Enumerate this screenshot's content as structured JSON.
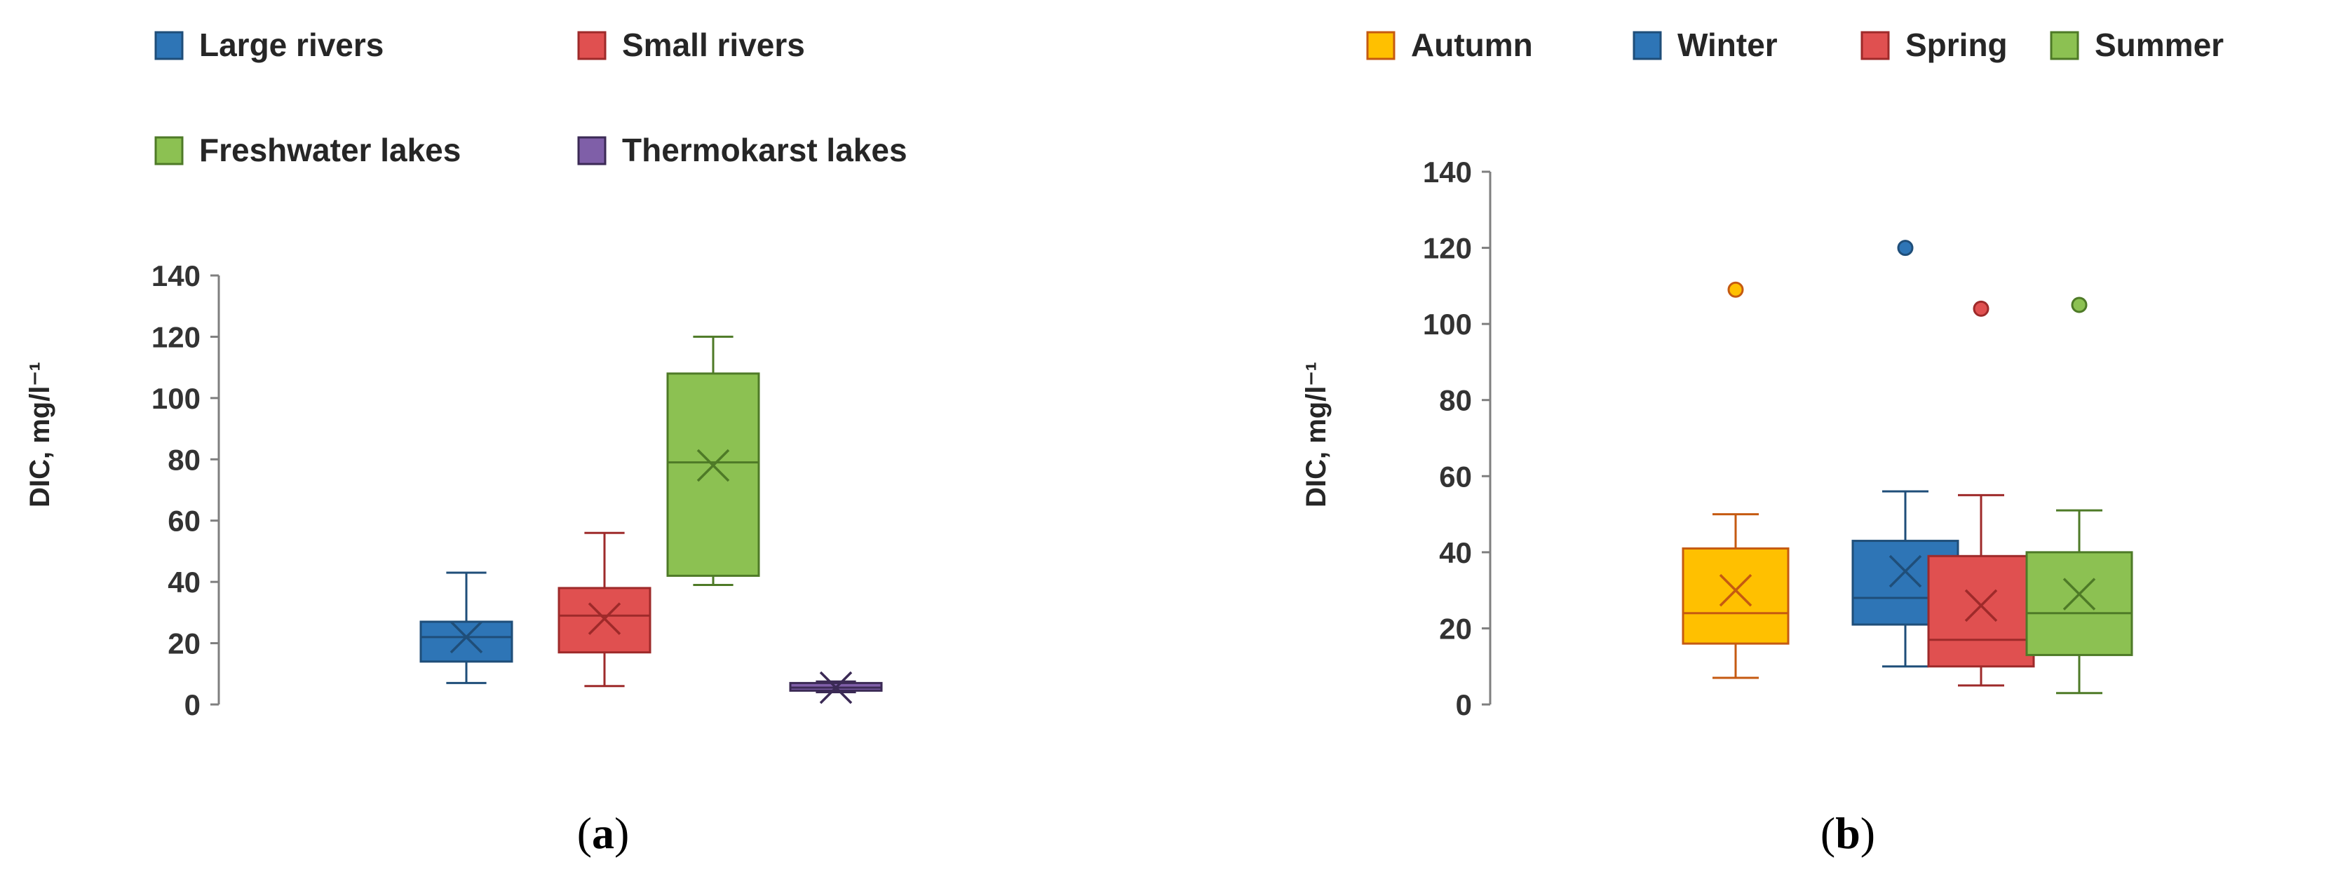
{
  "chart_data": [
    {
      "panel": "a",
      "type": "box",
      "ylabel": "DIC,  mg/l⁻¹",
      "ylim": [
        0,
        140
      ],
      "yticks": [
        0,
        20,
        40,
        60,
        80,
        100,
        120,
        140
      ],
      "grid": false,
      "legend_position": "top",
      "series": [
        {
          "name": "Large rivers",
          "color": "#2e75b6",
          "stroke": "#1f4e79",
          "min": 7,
          "q1": 14,
          "median": 22,
          "q3": 27,
          "max": 43,
          "mean": 22,
          "outliers": []
        },
        {
          "name": "Small rivers",
          "color": "#e05050",
          "stroke": "#9e2a2a",
          "min": 6,
          "q1": 17,
          "median": 29,
          "q3": 38,
          "max": 56,
          "mean": 28,
          "outliers": []
        },
        {
          "name": "Freshwater lakes",
          "color": "#8cc152",
          "stroke": "#4e7a27",
          "min": 39,
          "q1": 42,
          "median": 79,
          "q3": 108,
          "max": 120,
          "mean": 78,
          "outliers": []
        },
        {
          "name": "Thermokarst lakes",
          "color": "#7f5fa8",
          "stroke": "#3b2a55",
          "min": 4,
          "q1": 4.5,
          "median": 5.5,
          "q3": 7,
          "max": 7.5,
          "mean": 5.5,
          "outliers": []
        }
      ]
    },
    {
      "panel": "b",
      "type": "box",
      "ylabel": "DIC,  mg/l⁻¹",
      "ylim": [
        0,
        140
      ],
      "yticks": [
        0,
        20,
        40,
        60,
        80,
        100,
        120,
        140
      ],
      "grid": false,
      "legend_position": "top",
      "series": [
        {
          "name": "Autumn",
          "color": "#ffc000",
          "stroke": "#c55a11",
          "min": 7,
          "q1": 16,
          "median": 24,
          "q3": 41,
          "max": 50,
          "mean": 30,
          "outliers": [
            109
          ]
        },
        {
          "name": "Winter",
          "color": "#2e75b6",
          "stroke": "#1f4e79",
          "min": 10,
          "q1": 21,
          "median": 28,
          "q3": 43,
          "max": 56,
          "mean": 35,
          "outliers": [
            120
          ]
        },
        {
          "name": "Spring",
          "color": "#e05050",
          "stroke": "#9e2a2a",
          "min": 5,
          "q1": 10,
          "median": 17,
          "q3": 39,
          "max": 55,
          "mean": 26,
          "outliers": [
            104
          ]
        },
        {
          "name": "Summer",
          "color": "#8cc152",
          "stroke": "#4e7a27",
          "min": 3,
          "q1": 13,
          "median": 24,
          "q3": 40,
          "max": 51,
          "mean": 29,
          "outliers": [
            105
          ]
        }
      ]
    }
  ],
  "captions": {
    "a": {
      "open": "(",
      "letter": "a",
      "close": ")"
    },
    "b": {
      "open": "(",
      "letter": "b",
      "close": ")"
    }
  }
}
